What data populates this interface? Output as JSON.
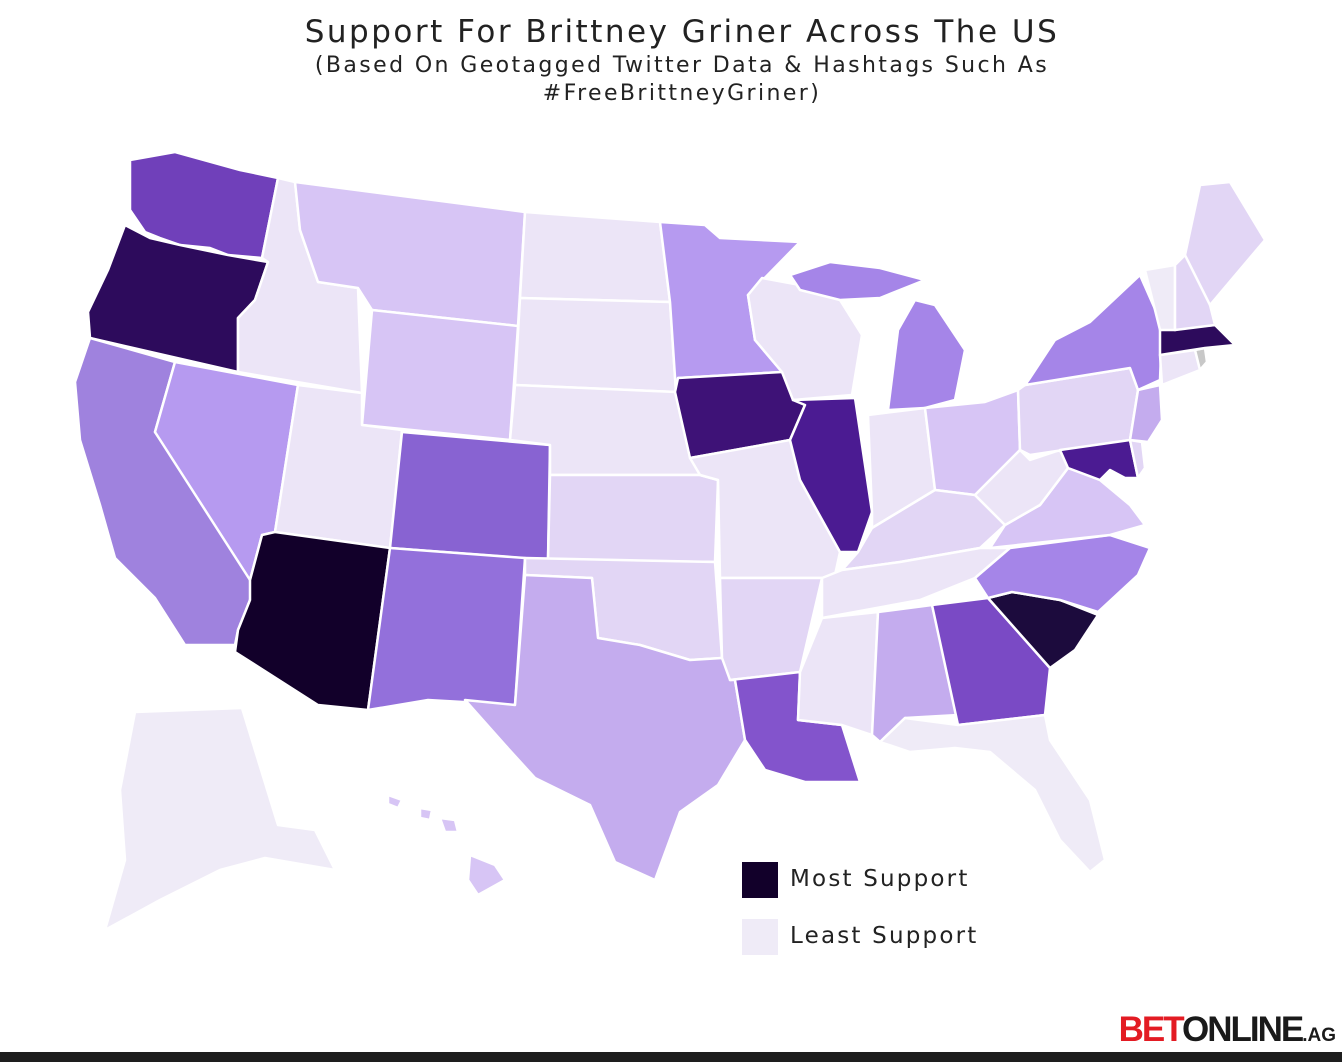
{
  "title": "Support For Brittney Griner Across The US",
  "subtitle_line1": "(Based On Geotagged Twitter Data & Hashtags Such As",
  "subtitle_line2": "#FreeBrittneyGriner)",
  "legend": {
    "most_label": "Most Support",
    "least_label": "Least Support",
    "most_color": "#12002a",
    "least_color": "#efebf7"
  },
  "brand": {
    "part1": "BET",
    "part2": "ONLINE",
    "part3": ".AG"
  },
  "states": [
    {
      "name": "Washington",
      "color": "#7040ba"
    },
    {
      "name": "Oregon",
      "color": "#2d0b5c"
    },
    {
      "name": "California",
      "color": "#9f82de"
    },
    {
      "name": "Nevada",
      "color": "#b69af0"
    },
    {
      "name": "Idaho",
      "color": "#ece5f7"
    },
    {
      "name": "Montana",
      "color": "#d7c5f5"
    },
    {
      "name": "Wyoming",
      "color": "#d7c5f5"
    },
    {
      "name": "Utah",
      "color": "#ece5f7"
    },
    {
      "name": "Arizona",
      "color": "#12002a"
    },
    {
      "name": "Colorado",
      "color": "#8863d2"
    },
    {
      "name": "New Mexico",
      "color": "#9370db"
    },
    {
      "name": "North Dakota",
      "color": "#ece5f7"
    },
    {
      "name": "South Dakota",
      "color": "#ece5f7"
    },
    {
      "name": "Nebraska",
      "color": "#ece5f7"
    },
    {
      "name": "Kansas",
      "color": "#e2d6f5"
    },
    {
      "name": "Oklahoma",
      "color": "#e2d6f5"
    },
    {
      "name": "Texas",
      "color": "#c4acee"
    },
    {
      "name": "Minnesota",
      "color": "#b69af0"
    },
    {
      "name": "Iowa",
      "color": "#3e1277"
    },
    {
      "name": "Missouri",
      "color": "#ece5f7"
    },
    {
      "name": "Arkansas",
      "color": "#e2d6f5"
    },
    {
      "name": "Louisiana",
      "color": "#8354cc"
    },
    {
      "name": "Wisconsin",
      "color": "#ece5f7"
    },
    {
      "name": "Illinois",
      "color": "#4b1b92"
    },
    {
      "name": "Michigan",
      "color": "#a585e8"
    },
    {
      "name": "Indiana",
      "color": "#ece5f7"
    },
    {
      "name": "Ohio",
      "color": "#d7c5f5"
    },
    {
      "name": "Kentucky",
      "color": "#e2d6f5"
    },
    {
      "name": "Tennessee",
      "color": "#ece5f7"
    },
    {
      "name": "Mississippi",
      "color": "#ece5f7"
    },
    {
      "name": "Alabama",
      "color": "#c4acee"
    },
    {
      "name": "Georgia",
      "color": "#7a4ac5"
    },
    {
      "name": "Florida",
      "color": "#efebf7"
    },
    {
      "name": "South Carolina",
      "color": "#1c0b3d"
    },
    {
      "name": "North Carolina",
      "color": "#a585e8"
    },
    {
      "name": "Virginia",
      "color": "#d7c5f5"
    },
    {
      "name": "West Virginia",
      "color": "#ece5f7"
    },
    {
      "name": "Pennsylvania",
      "color": "#e2d6f5"
    },
    {
      "name": "New York",
      "color": "#a585e8"
    },
    {
      "name": "Maryland",
      "color": "#4b1b92"
    },
    {
      "name": "Delaware",
      "color": "#e2d6f5"
    },
    {
      "name": "New Jersey",
      "color": "#c4acee"
    },
    {
      "name": "Connecticut",
      "color": "#ece5f7"
    },
    {
      "name": "Rhode Island",
      "color": "#c8c8c8"
    },
    {
      "name": "Massachusetts",
      "color": "#2d0b5c"
    },
    {
      "name": "Vermont",
      "color": "#efebf7"
    },
    {
      "name": "New Hampshire",
      "color": "#e2d6f5"
    },
    {
      "name": "Maine",
      "color": "#e2d6f5"
    },
    {
      "name": "Alaska",
      "color": "#efebf7"
    },
    {
      "name": "Hawaii",
      "color": "#d7c5f5"
    }
  ]
}
